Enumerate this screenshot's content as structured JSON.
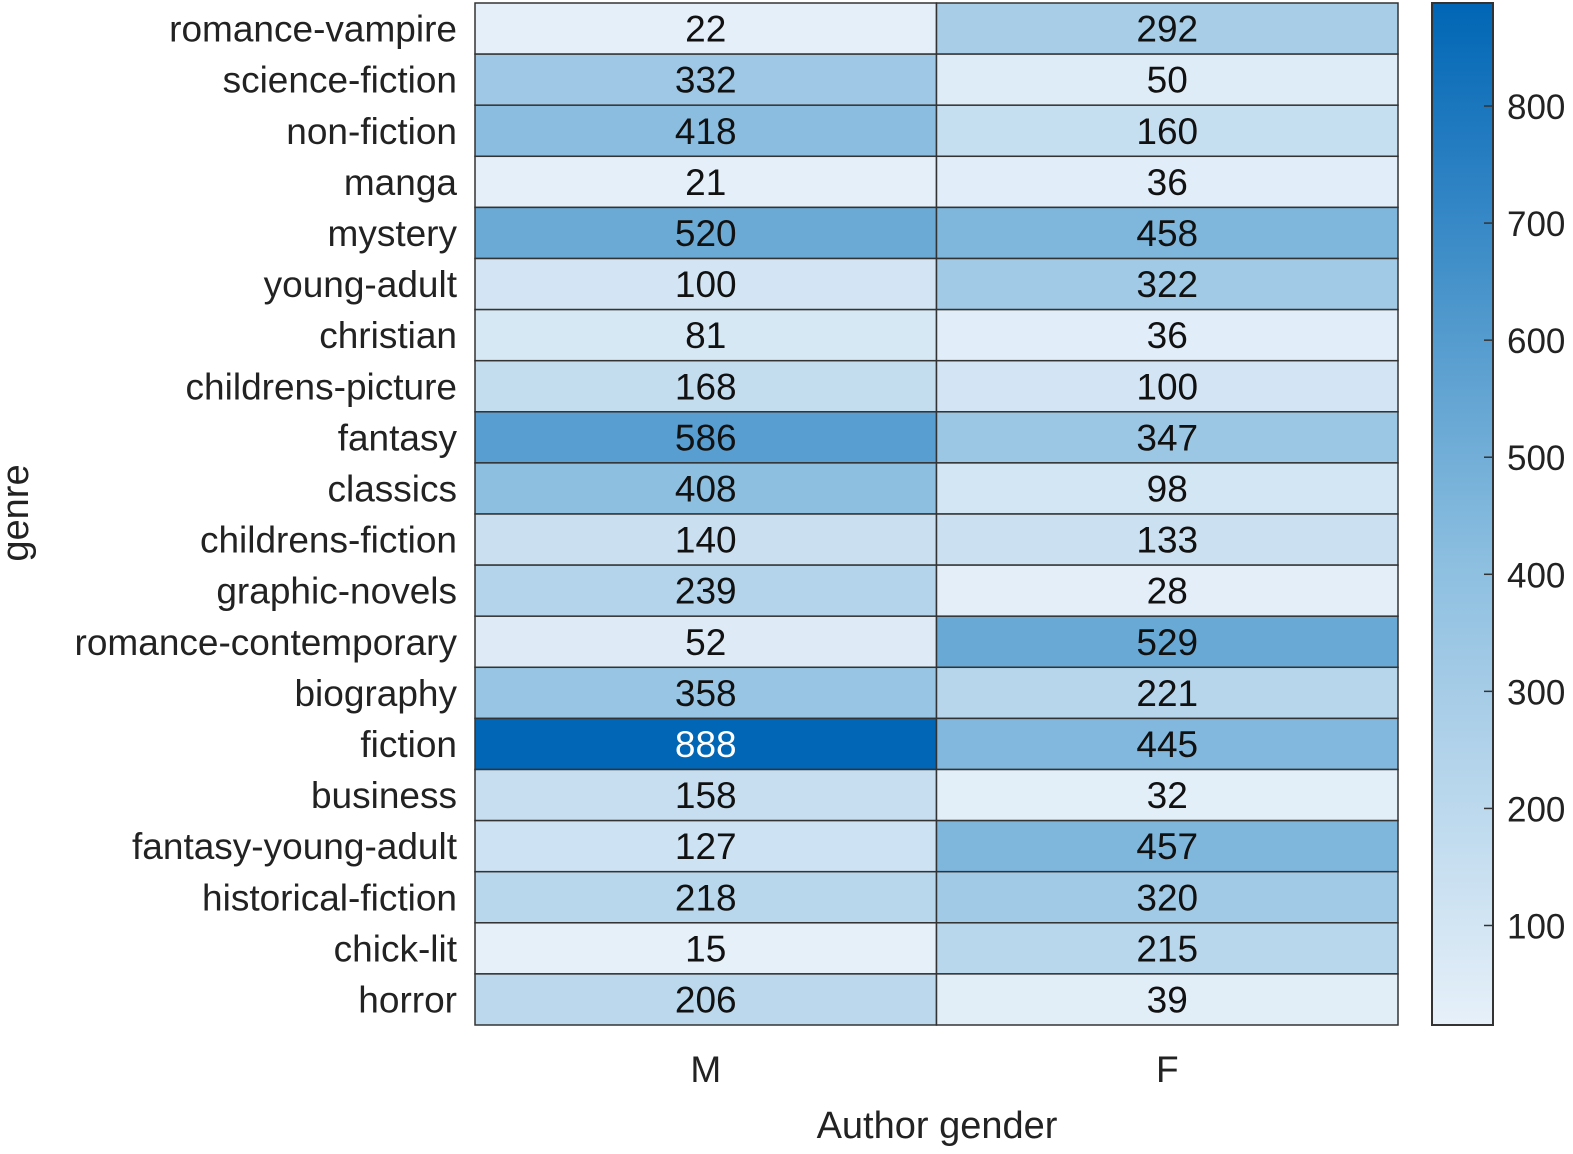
{
  "chart_data": {
    "type": "heatmap",
    "title": "",
    "xlabel": "Author gender",
    "ylabel": "genre",
    "x_categories": [
      "M",
      "F"
    ],
    "y_categories": [
      "romance-vampire",
      "science-fiction",
      "non-fiction",
      "manga",
      "mystery",
      "young-adult",
      "christian",
      "childrens-picture",
      "fantasy",
      "classics",
      "childrens-fiction",
      "graphic-novels",
      "romance-contemporary",
      "biography",
      "fiction",
      "business",
      "fantasy-young-adult",
      "historical-fiction",
      "chick-lit",
      "horror"
    ],
    "values": [
      [
        22,
        292
      ],
      [
        332,
        50
      ],
      [
        418,
        160
      ],
      [
        21,
        36
      ],
      [
        520,
        458
      ],
      [
        100,
        322
      ],
      [
        81,
        36
      ],
      [
        168,
        100
      ],
      [
        586,
        347
      ],
      [
        408,
        98
      ],
      [
        140,
        133
      ],
      [
        239,
        28
      ],
      [
        52,
        529
      ],
      [
        358,
        221
      ],
      [
        888,
        445
      ],
      [
        158,
        32
      ],
      [
        127,
        457
      ],
      [
        218,
        320
      ],
      [
        15,
        215
      ],
      [
        206,
        39
      ]
    ],
    "annotated": true,
    "colorbar": {
      "range": [
        15,
        888
      ],
      "ticks": [
        100,
        200,
        300,
        400,
        500,
        600,
        700,
        800
      ],
      "colormap": "light-to-dark blue"
    },
    "colors": {
      "low": "#e6f0f9",
      "mid": "#8dbfe0",
      "high": "#0066b5",
      "gridline": "#333333",
      "text_dark": "#111111",
      "text_light": "#ffffff"
    }
  }
}
